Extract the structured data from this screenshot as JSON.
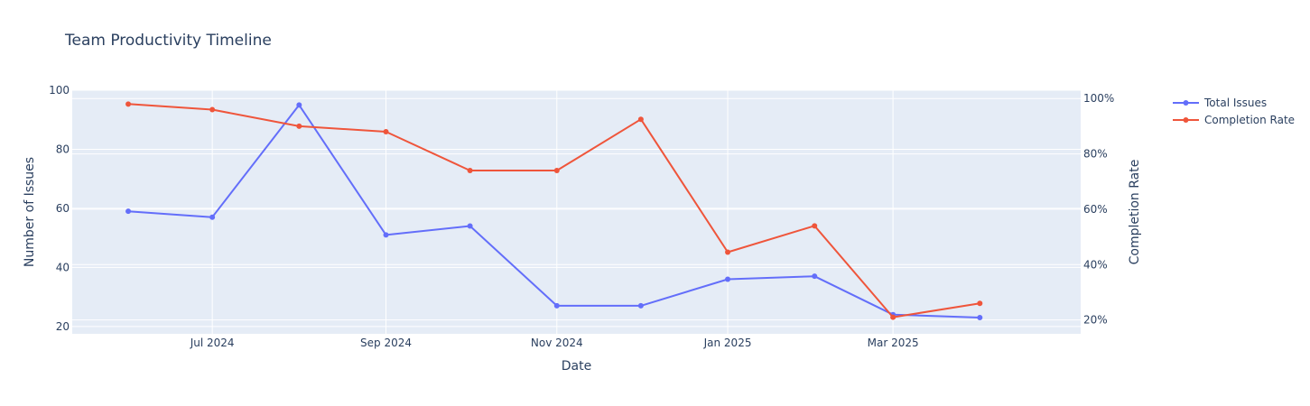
{
  "chart_data": {
    "type": "line",
    "title": "Team Productivity Timeline",
    "xlabel": "Date",
    "ylabel": "Number of Issues",
    "y2label": "Completion Rate",
    "x": [
      "2024-06-01",
      "2024-07-01",
      "2024-08-01",
      "2024-09-01",
      "2024-10-01",
      "2024-11-01",
      "2024-12-01",
      "2025-01-01",
      "2025-02-01",
      "2025-03-01",
      "2025-04-01"
    ],
    "x_ticks": [
      {
        "date": "2024-07-01",
        "label": "Jul 2024"
      },
      {
        "date": "2024-09-01",
        "label": "Sep 2024"
      },
      {
        "date": "2024-11-01",
        "label": "Nov 2024"
      },
      {
        "date": "2025-01-01",
        "label": "Jan 2025"
      },
      {
        "date": "2025-03-01",
        "label": "Mar 2025"
      }
    ],
    "xlim": [
      "2024-05-12",
      "2025-05-07"
    ],
    "ylim": [
      17.5,
      100
    ],
    "y_ticks": [
      20,
      40,
      60,
      80,
      100
    ],
    "y2lim": [
      0.15,
      1.03
    ],
    "y2_ticks": [
      {
        "value": 0.2,
        "label": "20%"
      },
      {
        "value": 0.4,
        "label": "40%"
      },
      {
        "value": 0.6,
        "label": "60%"
      },
      {
        "value": 0.8,
        "label": "80%"
      },
      {
        "value": 1.0,
        "label": "100%"
      }
    ],
    "series": [
      {
        "name": "Total Issues",
        "axis": "y",
        "color": "#636efa",
        "values": [
          59,
          57,
          95,
          51,
          54,
          27,
          27,
          36,
          37,
          24,
          23
        ]
      },
      {
        "name": "Completion Rate",
        "axis": "y2",
        "color": "#ef553b",
        "values": [
          0.98,
          0.96,
          0.9,
          0.88,
          0.74,
          0.74,
          0.925,
          0.445,
          0.54,
          0.21,
          0.26
        ]
      }
    ],
    "grid": true,
    "legend": "top-right"
  }
}
